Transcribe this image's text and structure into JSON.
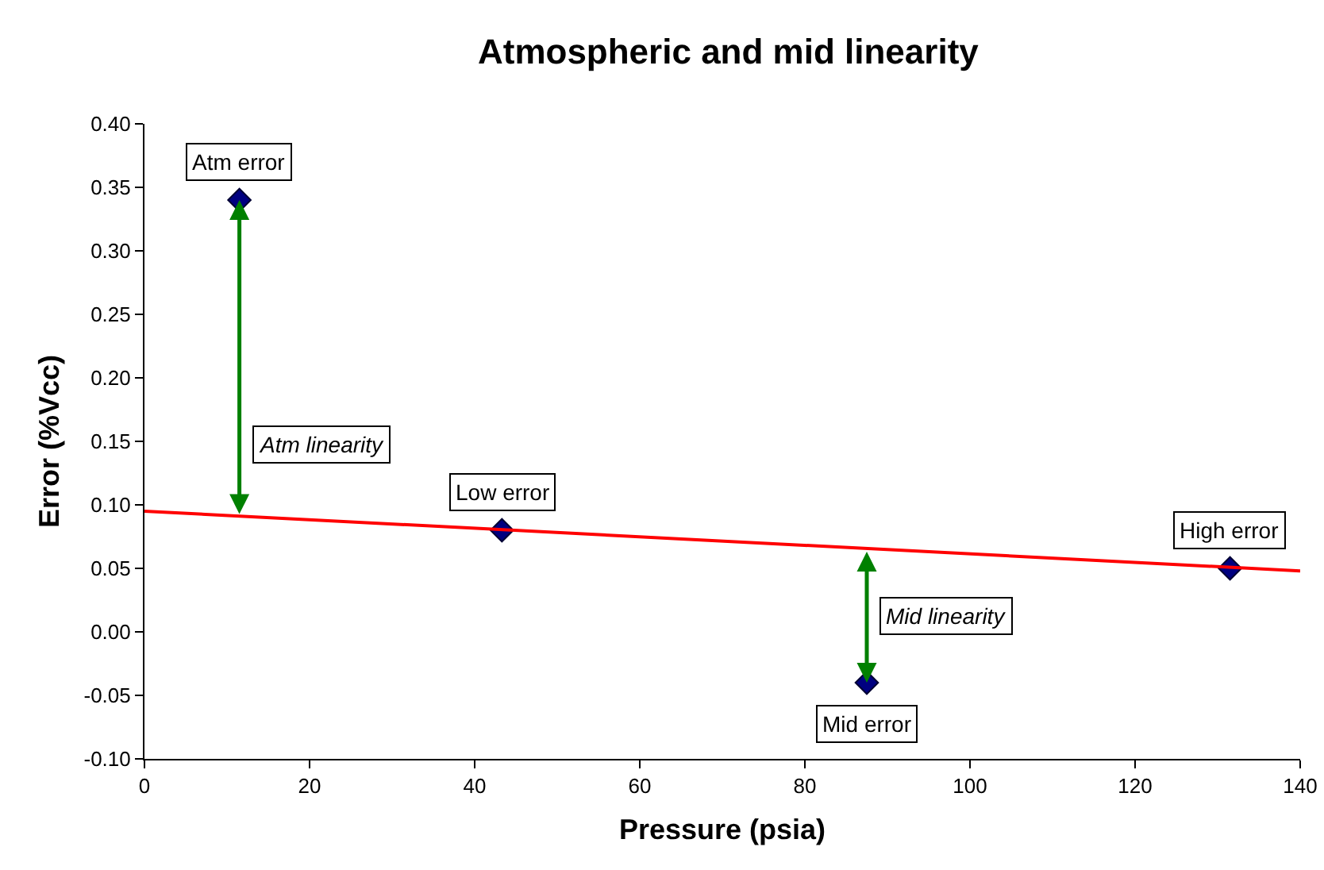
{
  "chart_data": {
    "type": "scatter",
    "title": "Atmospheric and mid linearity",
    "xlabel": "Pressure (psia)",
    "ylabel": "Error (%Vcc)",
    "xlim": [
      0,
      140
    ],
    "xticks": [
      0,
      20,
      40,
      60,
      80,
      100,
      120,
      140
    ],
    "ylim": [
      -0.1,
      0.4
    ],
    "yticks": [
      {
        "value": -0.1,
        "label": "-0.10"
      },
      {
        "value": -0.05,
        "label": "-0.05"
      },
      {
        "value": 0,
        "label": "0.00"
      },
      {
        "value": 0.05,
        "label": "0.05"
      },
      {
        "value": 0.1,
        "label": "0.10"
      },
      {
        "value": 0.15,
        "label": "0.15"
      },
      {
        "value": 0.2,
        "label": "0.20"
      },
      {
        "value": 0.25,
        "label": "0.25"
      },
      {
        "value": 0.3,
        "label": "0.30"
      },
      {
        "value": 0.35,
        "label": "0.35"
      },
      {
        "value": 0.4,
        "label": "0.40"
      }
    ],
    "grid": false,
    "marker": "diamond",
    "series": [
      {
        "color": "#000080",
        "x": [
          11.5,
          43.3,
          87.5,
          131.5
        ],
        "values": [
          0.34,
          0.08,
          -0.04,
          0.05
        ]
      },
      {
        "type": "line",
        "color": "#ff0000",
        "marker": "none",
        "x": [
          0,
          140
        ],
        "values": [
          0.095,
          0.048
        ]
      }
    ],
    "annotations": [
      {
        "text": "Atm error",
        "x": 11.5,
        "y": 0.34
      },
      {
        "text": "Low error",
        "x": 43.3,
        "y": 0.08
      },
      {
        "text": "Mid error",
        "x": 87.5,
        "y": -0.04
      },
      {
        "text": "High error",
        "x": 131.5,
        "y": 0.05
      },
      {
        "text": "Atm linearity",
        "x": 11.5,
        "y": 0.091
      },
      {
        "text": "Mid linearity",
        "x": 87.5,
        "y": 0.065
      }
    ]
  }
}
